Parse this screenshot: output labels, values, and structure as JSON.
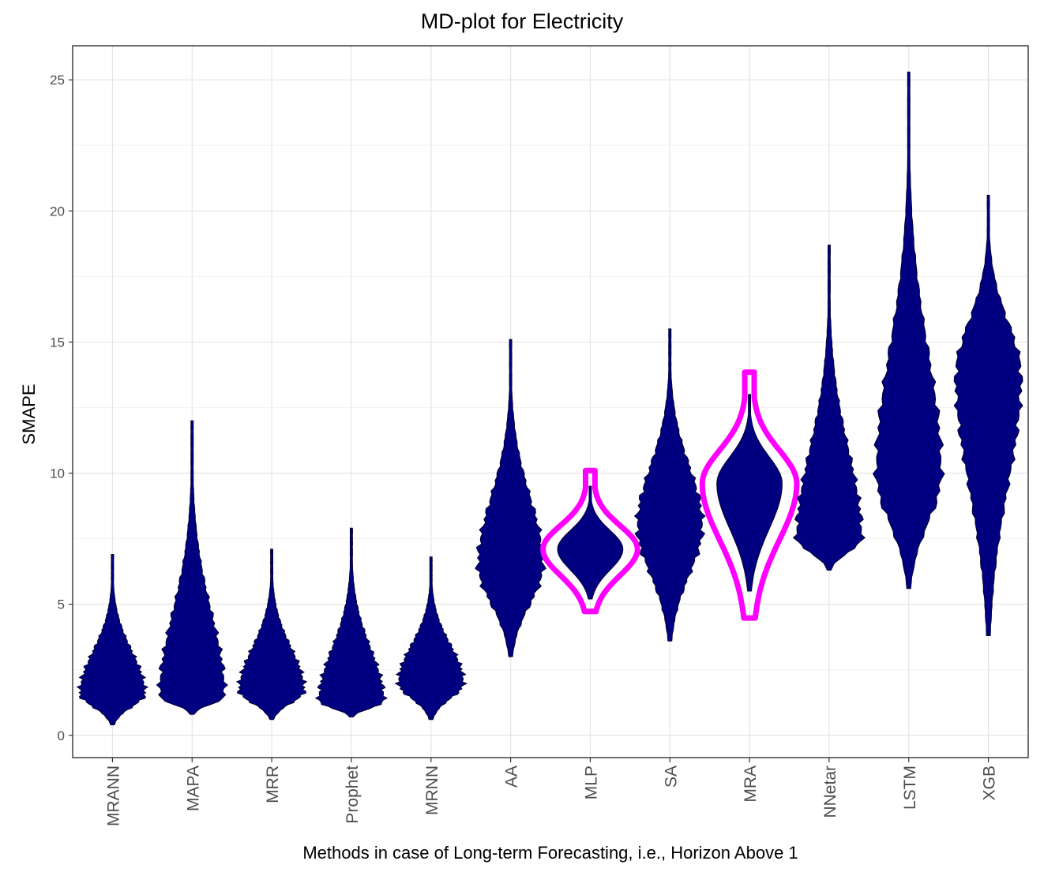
{
  "chart_data": {
    "type": "violin",
    "title": "MD-plot for Electricity",
    "xlabel": "Methods in case of Long-term Forecasting, i.e., Horizon Above 1",
    "ylabel": "SMAPE",
    "ylim": [
      -0.85,
      26.3
    ],
    "yticks": [
      0,
      5,
      10,
      15,
      20,
      25
    ],
    "grid": true,
    "fill_color": "#000080",
    "highlight_color": "#ff00ff",
    "categories": [
      "MRANN",
      "MAPA",
      "MRR",
      "Prophet",
      "MRNN",
      "AA",
      "MLP",
      "SA",
      "MRA",
      "NNetar",
      "LSTM",
      "XGB"
    ],
    "series": [
      {
        "name": "MRANN",
        "min": 0.4,
        "max": 6.9,
        "mode": 1.6,
        "highlight": false
      },
      {
        "name": "MAPA",
        "min": 0.8,
        "max": 12.0,
        "mode": 1.5,
        "highlight": false
      },
      {
        "name": "MRR",
        "min": 0.6,
        "max": 7.1,
        "mode": 1.7,
        "highlight": false
      },
      {
        "name": "Prophet",
        "min": 0.7,
        "max": 7.9,
        "mode": 1.3,
        "highlight": false
      },
      {
        "name": "MRNN",
        "min": 0.6,
        "max": 6.8,
        "mode": 2.0,
        "highlight": false
      },
      {
        "name": "AA",
        "min": 3.0,
        "max": 15.1,
        "mode": 6.5,
        "highlight": false
      },
      {
        "name": "MLP",
        "min": 5.2,
        "max": 9.5,
        "mode": 7.1,
        "highlight": true
      },
      {
        "name": "SA",
        "min": 3.6,
        "max": 15.5,
        "mode": 8.0,
        "highlight": false
      },
      {
        "name": "MRA",
        "min": 5.5,
        "max": 13.0,
        "mode": 9.6,
        "highlight": true
      },
      {
        "name": "NNetar",
        "min": 6.3,
        "max": 18.7,
        "mode": 7.5,
        "highlight": false
      },
      {
        "name": "LSTM",
        "min": 5.6,
        "max": 25.3,
        "mode": 10.0,
        "highlight": false
      },
      {
        "name": "XGB",
        "min": 3.8,
        "max": 20.6,
        "mode": 13.7,
        "highlight": false
      }
    ]
  }
}
